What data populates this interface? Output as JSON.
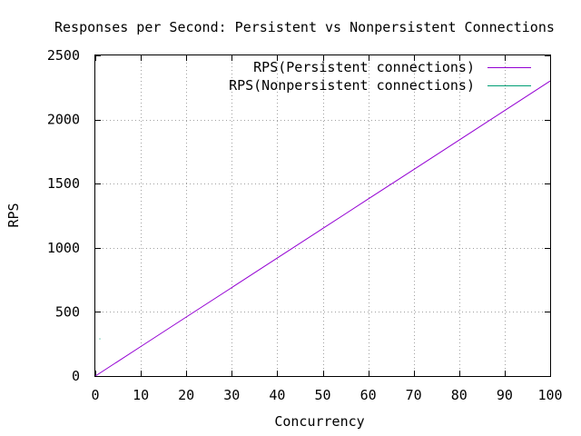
{
  "chart_data": {
    "type": "line",
    "title": "Responses per Second: Persistent vs Nonpersistent Connections",
    "xlabel": "Concurrency",
    "ylabel": "RPS",
    "xlim": [
      0,
      100
    ],
    "ylim": [
      0,
      2500
    ],
    "x_ticks": [
      0,
      10,
      20,
      30,
      40,
      50,
      60,
      70,
      80,
      90,
      100
    ],
    "y_ticks": [
      0,
      500,
      1000,
      1500,
      2000,
      2500
    ],
    "grid": true,
    "legend_position": "top-right",
    "series": [
      {
        "name": "RPS(Persistent connections)",
        "color": "#9400d3",
        "x": [
          0,
          10,
          20,
          30,
          40,
          50,
          60,
          70,
          80,
          90,
          100
        ],
        "y": [
          0,
          230,
          460,
          690,
          920,
          1150,
          1380,
          1610,
          1840,
          2070,
          2300
        ]
      },
      {
        "name": "RPS(Nonpersistent connections)",
        "color": "#009e73",
        "x": [
          1
        ],
        "y": [
          290
        ]
      }
    ]
  }
}
